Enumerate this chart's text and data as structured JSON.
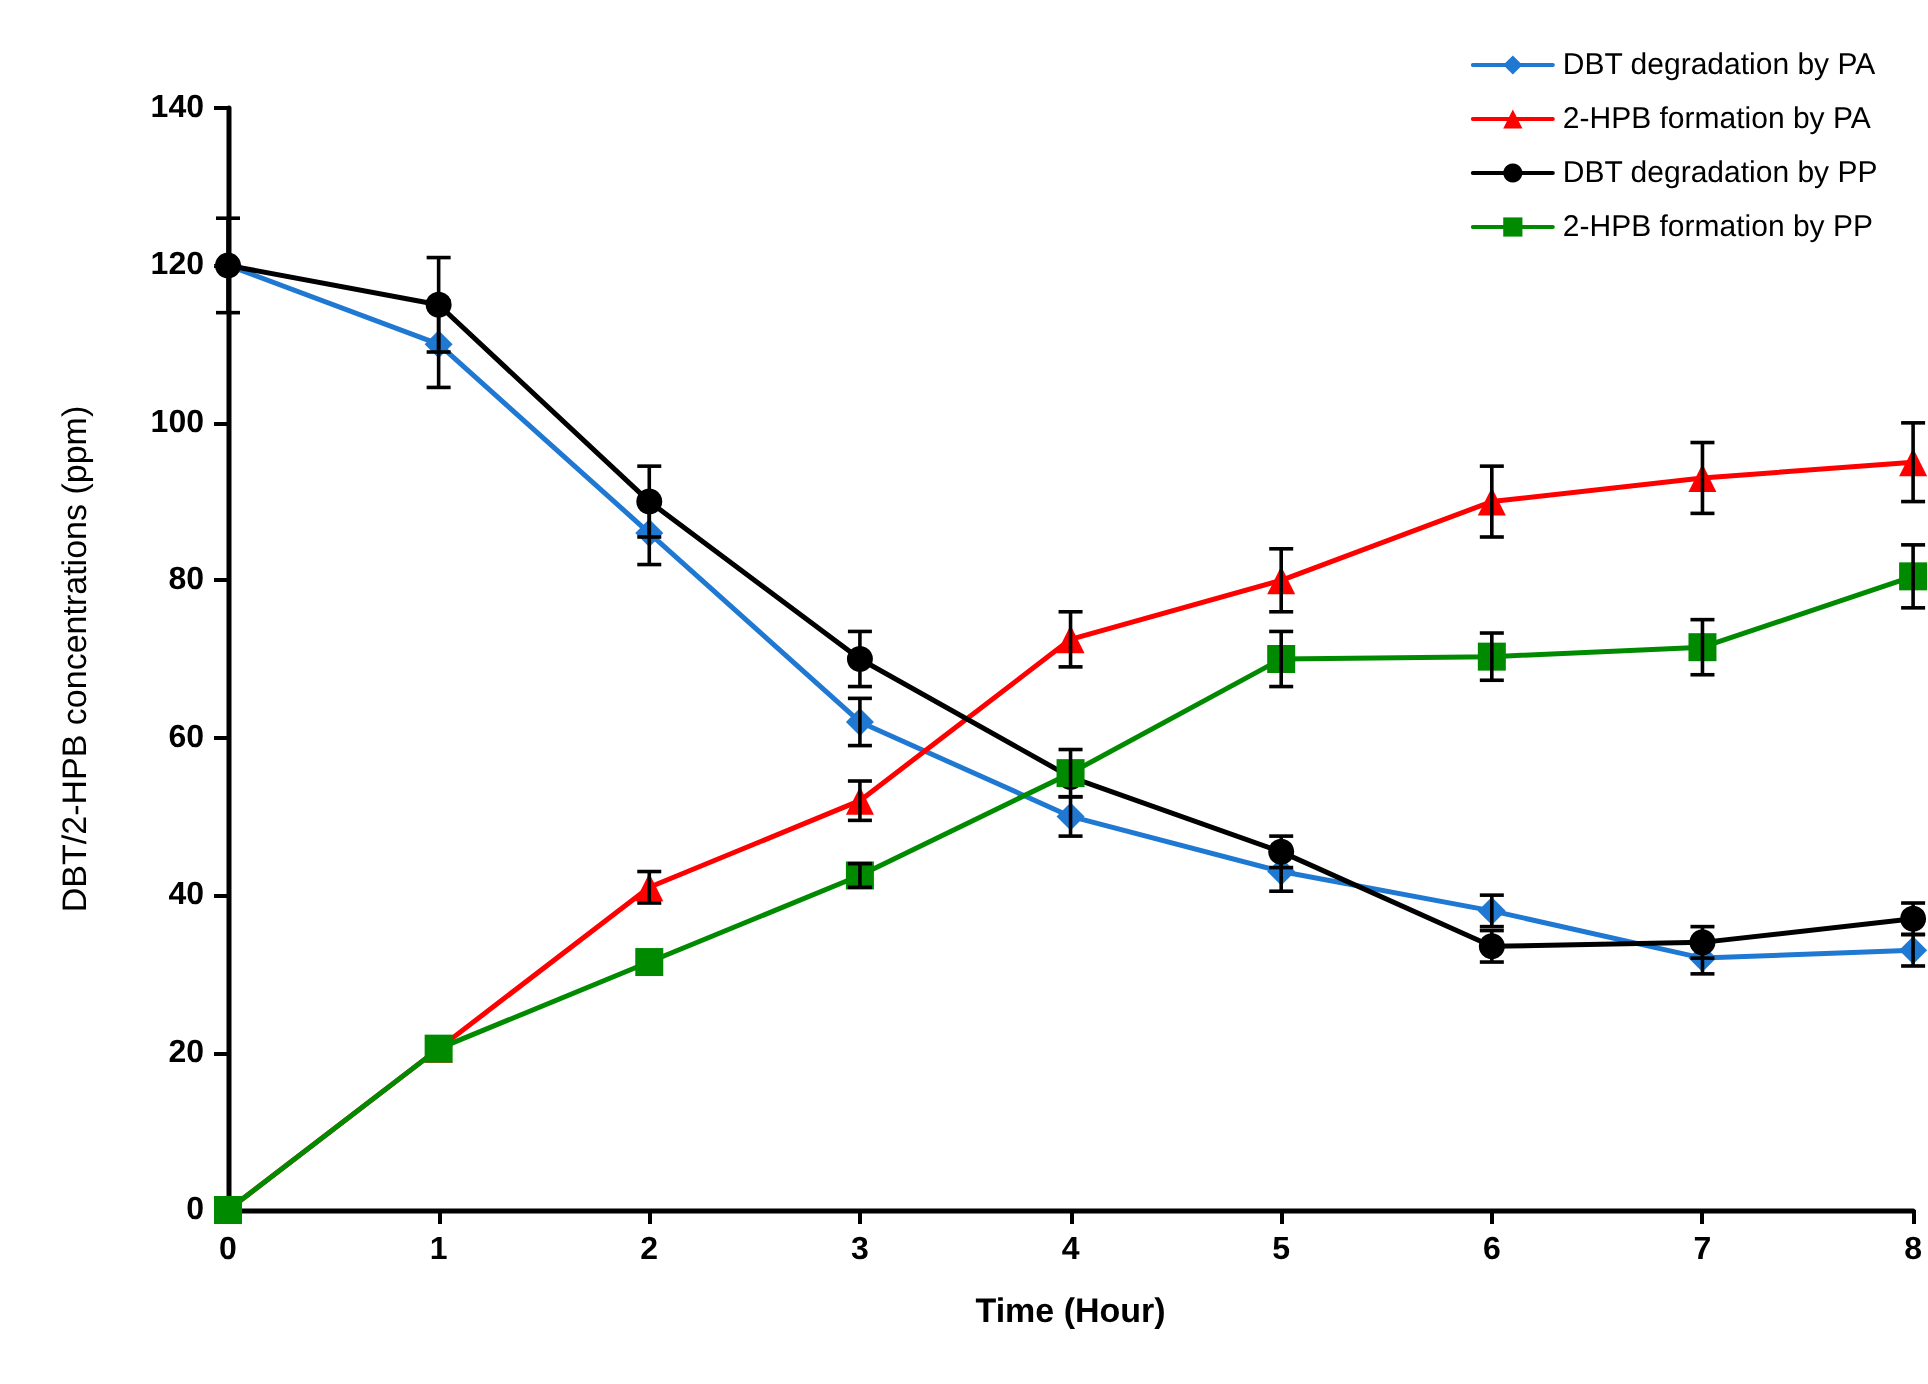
{
  "chart_data": {
    "type": "line",
    "xlabel": "Time (Hour)",
    "ylabel": "DBT/2-HPB concentrations (ppm)",
    "x": [
      0,
      1,
      2,
      3,
      4,
      5,
      6,
      7,
      8
    ],
    "xlim": [
      0,
      8
    ],
    "xticks": [
      0,
      1,
      2,
      3,
      4,
      5,
      6,
      7,
      8
    ],
    "ylim": [
      0,
      140
    ],
    "yticks": [
      0,
      20,
      40,
      60,
      80,
      100,
      120,
      140
    ],
    "grid": false,
    "legend": "top right",
    "line_style": "solid",
    "series": [
      {
        "name": "DBT degradation by PA",
        "color": "#1f78d1",
        "marker": "diamond",
        "values": [
          120,
          110,
          86,
          62,
          50,
          43,
          38,
          32,
          33
        ],
        "errors": [
          null,
          5.5,
          4,
          3,
          2.5,
          2.5,
          2,
          2,
          2
        ]
      },
      {
        "name": "2-HPB formation by PA",
        "color": "#ff0000",
        "marker": "triangle",
        "values": [
          0,
          20.5,
          41,
          52,
          72.5,
          80,
          90,
          93,
          95
        ],
        "errors": [
          null,
          null,
          2,
          2.5,
          3.5,
          4,
          4.5,
          4.5,
          5
        ]
      },
      {
        "name": "DBT degradation by PP",
        "color": "#000000",
        "marker": "circle",
        "values": [
          120,
          115,
          90,
          70,
          55,
          45.5,
          33.5,
          34,
          37
        ],
        "errors": [
          6,
          6,
          4.5,
          3.5,
          null,
          2,
          2,
          2,
          2
        ]
      },
      {
        "name": "2-HPB formation by PP",
        "color": "#008a00",
        "marker": "square",
        "values": [
          0,
          20.5,
          31.5,
          42.5,
          55.5,
          70,
          70.3,
          71.5,
          80.5
        ],
        "errors": [
          null,
          null,
          null,
          1.5,
          3,
          3.5,
          3,
          3.5,
          4
        ]
      }
    ]
  }
}
